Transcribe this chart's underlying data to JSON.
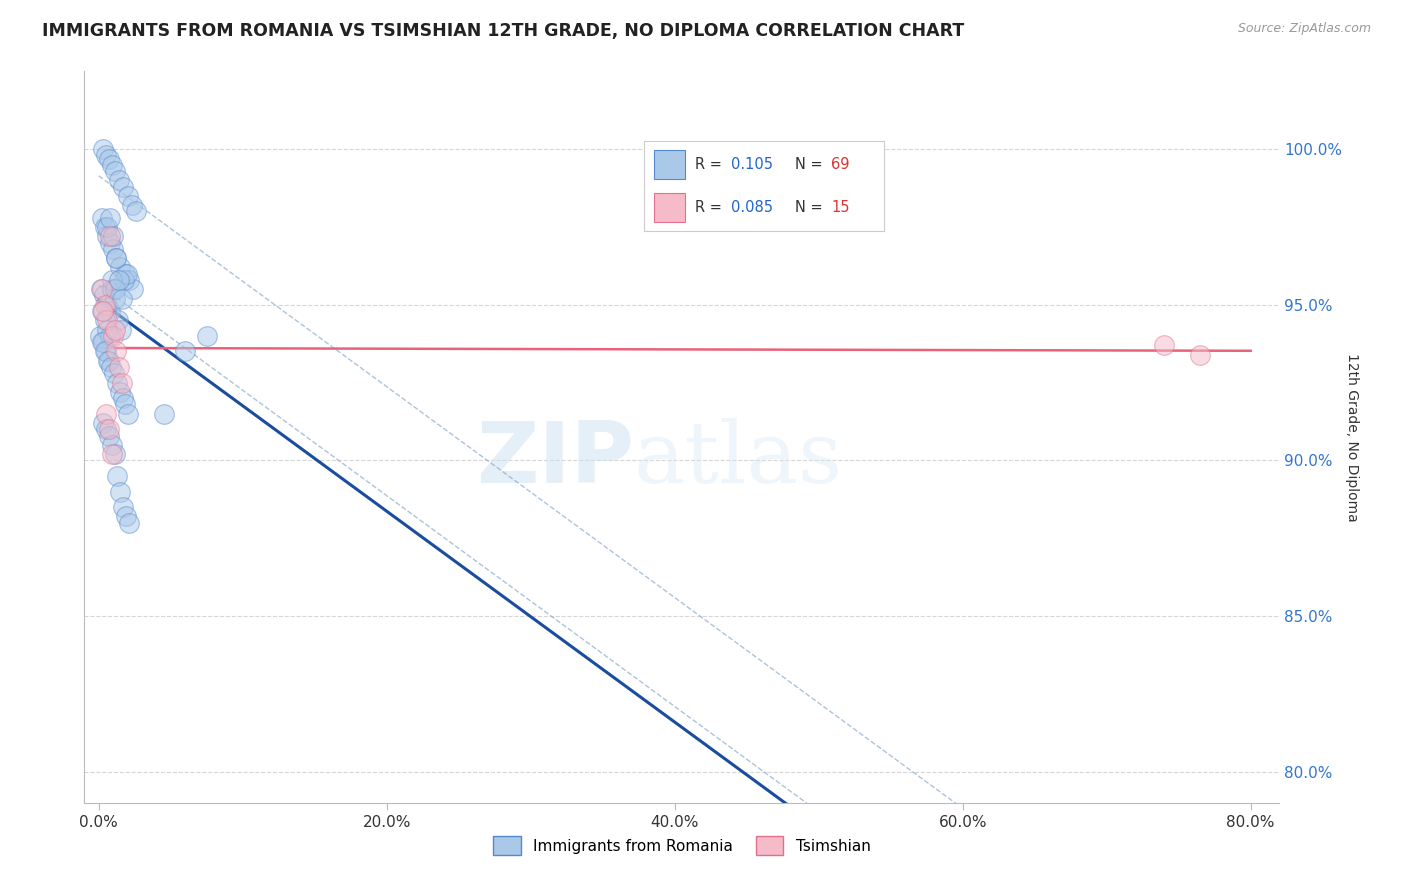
{
  "title": "IMMIGRANTS FROM ROMANIA VS TSIMSHIAN 12TH GRADE, NO DIPLOMA CORRELATION CHART",
  "source": "Source: ZipAtlas.com",
  "ylabel": "12th Grade, No Diploma",
  "y_ticks": [
    80.0,
    85.0,
    90.0,
    95.0,
    100.0
  ],
  "x_ticks": [
    0.0,
    20.0,
    40.0,
    60.0,
    80.0
  ],
  "xlim": [
    -1.0,
    82.0
  ],
  "ylim": [
    79.0,
    102.5
  ],
  "legend_label1": "Immigrants from Romania",
  "legend_label2": "Tsimshian",
  "watermark_zip": "ZIP",
  "watermark_atlas": "atlas",
  "blue_color": "#aac8e8",
  "blue_dot_edge": "#5588cc",
  "pink_color": "#f5bbc8",
  "pink_dot_edge": "#e07090",
  "trend_blue": "#1a4d9e",
  "trend_pink": "#e8637a",
  "ci_color": "#88aacc",
  "dot_size": 200,
  "dot_alpha": 0.5,
  "title_fontsize": 12.5,
  "axis_fontsize": 10,
  "tick_fontsize": 11,
  "ytick_color": "#3377cc",
  "background_color": "#ffffff",
  "grid_color": "#cccccc",
  "grid_alpha": 0.8,
  "romania_x": [
    0.3,
    0.5,
    0.7,
    0.9,
    1.1,
    1.4,
    1.7,
    2.0,
    2.3,
    2.6,
    0.2,
    0.4,
    0.6,
    0.8,
    1.0,
    1.2,
    1.5,
    1.8,
    2.1,
    2.4,
    0.15,
    0.35,
    0.55,
    0.75,
    0.95,
    1.15,
    1.35,
    1.55,
    1.75,
    1.95,
    0.1,
    0.3,
    0.5,
    0.7,
    0.9,
    1.1,
    0.2,
    0.4,
    0.6,
    0.8,
    0.25,
    0.45,
    0.65,
    0.85,
    1.05,
    1.25,
    1.45,
    1.65,
    1.85,
    2.05,
    0.3,
    0.5,
    0.7,
    0.9,
    1.1,
    1.3,
    1.5,
    1.7,
    1.9,
    2.1,
    4.5,
    6.0,
    7.5,
    0.6,
    0.8,
    1.0,
    1.2,
    1.4,
    1.6
  ],
  "romania_y": [
    100.0,
    99.8,
    99.7,
    99.5,
    99.3,
    99.0,
    98.8,
    98.5,
    98.2,
    98.0,
    97.8,
    97.5,
    97.2,
    97.0,
    96.8,
    96.5,
    96.2,
    96.0,
    95.8,
    95.5,
    95.5,
    95.3,
    95.0,
    94.8,
    95.5,
    95.2,
    94.5,
    94.2,
    95.8,
    96.0,
    94.0,
    93.8,
    93.5,
    93.2,
    95.8,
    95.5,
    94.8,
    94.5,
    94.2,
    94.0,
    93.8,
    93.5,
    93.2,
    93.0,
    92.8,
    92.5,
    92.2,
    92.0,
    91.8,
    91.5,
    91.2,
    91.0,
    90.8,
    90.5,
    90.2,
    89.5,
    89.0,
    88.5,
    88.2,
    88.0,
    91.5,
    93.5,
    94.0,
    97.5,
    97.8,
    97.2,
    96.5,
    95.8,
    95.2
  ],
  "tsimshian_x": [
    0.2,
    0.4,
    0.6,
    0.8,
    1.0,
    1.2,
    1.4,
    1.6,
    0.5,
    0.3,
    0.7,
    0.9,
    1.1,
    74.0,
    76.5
  ],
  "tsimshian_y": [
    95.5,
    95.0,
    94.5,
    97.2,
    94.0,
    93.5,
    93.0,
    92.5,
    91.5,
    94.8,
    91.0,
    90.2,
    94.2,
    93.7,
    93.4
  ]
}
